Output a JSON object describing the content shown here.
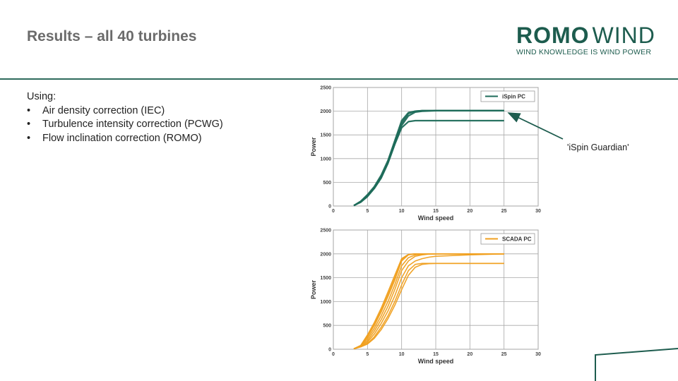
{
  "slide": {
    "title": "Results – all 40 turbines",
    "logo": {
      "brand_bold": "ROMO",
      "brand_light": "WIND",
      "tagline": "WIND KNOWLEDGE IS WIND POWER"
    },
    "intro": "Using:",
    "bullets": [
      "Air density correction (IEC)",
      "Turbulence intensity correction (PCWG)",
      "Flow inclination correction (ROMO)"
    ],
    "annotation": "'iSpin Guardian'",
    "colors": {
      "accent": "#1d5c4e",
      "rule": "#2f6b5c",
      "ispin": "#1e6b5a",
      "scada": "#f0a020"
    }
  },
  "chart_data": [
    {
      "type": "line",
      "xlabel": "Wind speed",
      "ylabel": "Power",
      "xlim": [
        0,
        30
      ],
      "ylim": [
        0,
        2500
      ],
      "xticks": [
        0,
        5,
        10,
        15,
        20,
        25,
        30
      ],
      "yticks": [
        0,
        500,
        1000,
        1500,
        2000,
        2500
      ],
      "legend": "iSpin PC",
      "legend_position": "top-right",
      "grid": true,
      "series": [
        {
          "name": "iSpin PC",
          "x": [
            3,
            4,
            5,
            6,
            7,
            8,
            9,
            10,
            11,
            12,
            13,
            14,
            15,
            20,
            25
          ],
          "y": [
            10,
            90,
            220,
            390,
            620,
            930,
            1350,
            1750,
            1950,
            2000,
            2010,
            2010,
            2010,
            2010,
            2010
          ]
        },
        {
          "x": [
            3,
            4,
            5,
            6,
            7,
            8,
            9,
            10,
            11,
            12,
            13,
            14,
            15,
            20,
            25
          ],
          "y": [
            10,
            80,
            200,
            370,
            590,
            900,
            1300,
            1650,
            1780,
            1800,
            1800,
            1800,
            1800,
            1800,
            1800
          ]
        },
        {
          "x": [
            3,
            4,
            5,
            6,
            7,
            8,
            9,
            10,
            11,
            12,
            13,
            14,
            15,
            20,
            25
          ],
          "y": [
            10,
            100,
            240,
            410,
            650,
            960,
            1380,
            1800,
            1970,
            2000,
            2010,
            2010,
            2010,
            2010,
            2010
          ]
        },
        {
          "x": [
            3,
            4,
            5,
            6,
            7,
            8,
            9,
            10,
            11,
            12,
            13,
            14,
            15,
            20,
            25
          ],
          "y": [
            10,
            85,
            210,
            380,
            600,
            910,
            1310,
            1700,
            1900,
            1980,
            2000,
            2005,
            2010,
            2010,
            2010
          ]
        }
      ]
    },
    {
      "type": "line",
      "xlabel": "Wind speed",
      "ylabel": "Power",
      "xlim": [
        0,
        30
      ],
      "ylim": [
        0,
        2500
      ],
      "xticks": [
        0,
        5,
        10,
        15,
        20,
        25,
        30
      ],
      "yticks": [
        0,
        500,
        1000,
        1500,
        2000,
        2500
      ],
      "legend": "SCADA PC",
      "legend_position": "top-right",
      "grid": true,
      "series": [
        {
          "name": "SCADA PC",
          "x": [
            3,
            4,
            5,
            6,
            7,
            8,
            9,
            10,
            11,
            12,
            13,
            14,
            15,
            20,
            25
          ],
          "y": [
            10,
            70,
            260,
            500,
            780,
            1100,
            1450,
            1850,
            1980,
            2000,
            2000,
            2000,
            2000,
            2000,
            2000
          ]
        },
        {
          "x": [
            3,
            4,
            5,
            6,
            7,
            8,
            9,
            10,
            11,
            12,
            13,
            14,
            15,
            20,
            25
          ],
          "y": [
            10,
            60,
            180,
            380,
            620,
            900,
            1250,
            1650,
            1850,
            1950,
            1980,
            1995,
            2000,
            2000,
            2000
          ]
        },
        {
          "x": [
            3,
            4,
            5,
            6,
            7,
            8,
            9,
            10,
            11,
            12,
            13,
            14,
            15,
            20,
            25
          ],
          "y": [
            10,
            50,
            120,
            260,
            460,
            700,
            1000,
            1350,
            1650,
            1780,
            1800,
            1800,
            1800,
            1800,
            1800
          ]
        },
        {
          "x": [
            3,
            4,
            5,
            6,
            7,
            8,
            9,
            10,
            11,
            12,
            13,
            14,
            15,
            20,
            25
          ],
          "y": [
            10,
            80,
            300,
            560,
            860,
            1200,
            1550,
            1900,
            1990,
            2000,
            2000,
            2000,
            2000,
            2000,
            2000
          ]
        },
        {
          "x": [
            3,
            4,
            5,
            6,
            7,
            8,
            9,
            10,
            11,
            12,
            13,
            14,
            15,
            20,
            25
          ],
          "y": [
            10,
            55,
            150,
            320,
            540,
            800,
            1120,
            1500,
            1750,
            1850,
            1900,
            1930,
            1950,
            1980,
            2000
          ]
        },
        {
          "x": [
            3,
            4,
            5,
            6,
            7,
            8,
            9,
            10,
            11,
            12,
            13,
            14,
            15,
            20,
            25
          ],
          "y": [
            10,
            65,
            220,
            440,
            700,
            1000,
            1350,
            1750,
            1920,
            1980,
            1995,
            2000,
            2000,
            2000,
            2000
          ]
        },
        {
          "x": [
            3,
            4,
            5,
            6,
            7,
            8,
            9,
            10,
            11,
            12,
            13,
            14,
            15,
            20,
            25
          ],
          "y": [
            10,
            50,
            110,
            230,
            410,
            640,
            920,
            1250,
            1550,
            1720,
            1780,
            1795,
            1800,
            1800,
            1800
          ]
        },
        {
          "x": [
            3,
            4,
            5,
            6,
            7,
            8,
            9,
            10,
            11,
            12,
            13,
            14,
            15,
            20,
            25
          ],
          "y": [
            10,
            75,
            280,
            530,
            820,
            1150,
            1500,
            1880,
            1985,
            2000,
            2000,
            2000,
            2000,
            2000,
            2000
          ]
        }
      ]
    }
  ]
}
